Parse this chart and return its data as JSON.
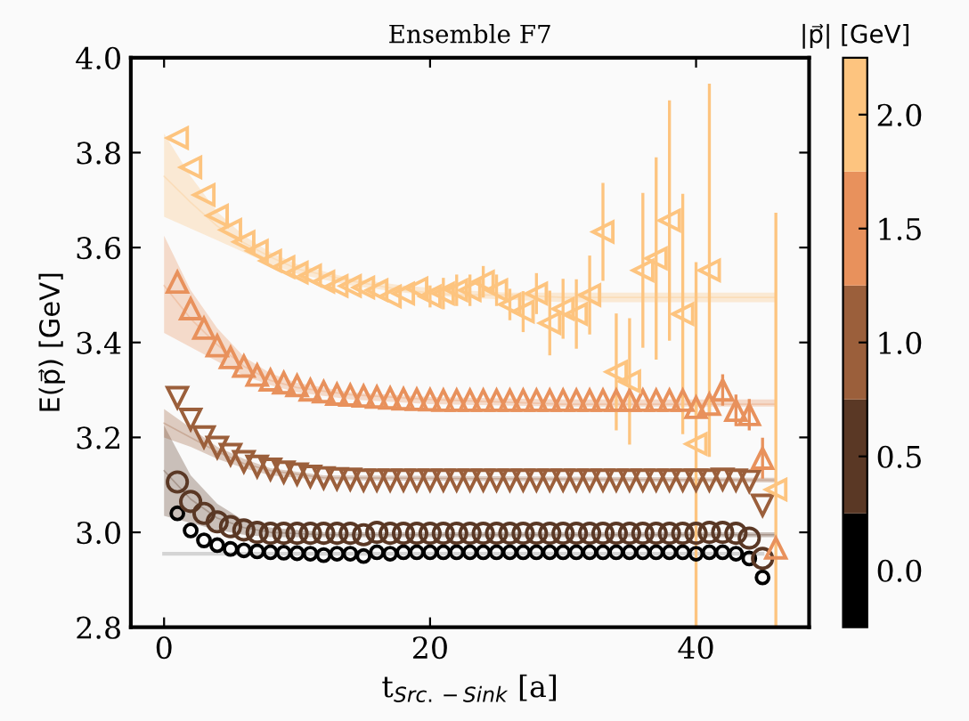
{
  "chart_data": {
    "type": "scatter",
    "title": "Ensemble F7",
    "xlabel": "t$_{Src.−Sink}$ [a]",
    "ylabel": "E(p⃗) [GeV]",
    "clabel": "|p⃗| [GeV]",
    "xlim": [
      -2.5,
      48.5
    ],
    "ylim": [
      2.8,
      4.0
    ],
    "xticks": [
      0,
      20,
      40
    ],
    "yticks": [
      2.8,
      {
        "value": 3.0,
        "label": "3.0"
      },
      3.2,
      3.4,
      3.6,
      3.8,
      {
        "value": 4.0,
        "label": "4.0"
      }
    ],
    "clim": [
      -0.25,
      2.25
    ],
    "cticks": [
      {
        "value": 0,
        "label": "0.0"
      },
      0.5,
      {
        "value": 1,
        "label": "1.0"
      },
      1.5,
      {
        "value": 2,
        "label": "2.0"
      }
    ],
    "grid": false,
    "series": [
      {
        "type": "line",
        "color": "#000000",
        "x": [
          0,
          45
        ],
        "values": [
          2.955,
          2.955
        ]
      },
      {
        "type": "line",
        "color": "#5a3825",
        "x": [
          0,
          2,
          4,
          6,
          8,
          12,
          46
        ],
        "values": [
          3.13,
          3.07,
          3.03,
          3.01,
          3.0,
          2.995,
          2.995
        ],
        "lower": [
          3.035,
          3.02,
          3.005,
          2.995,
          2.99,
          2.99,
          2.99
        ],
        "upper": [
          3.225,
          3.12,
          3.06,
          3.025,
          3.01,
          3.0,
          3.0
        ]
      },
      {
        "type": "line",
        "color": "#9b5f3b",
        "x": [
          0,
          2,
          4,
          6,
          8,
          12,
          46
        ],
        "values": [
          3.23,
          3.2,
          3.17,
          3.145,
          3.13,
          3.115,
          3.11
        ],
        "lower": [
          3.2,
          3.18,
          3.155,
          3.135,
          3.12,
          3.11,
          3.105
        ],
        "upper": [
          3.26,
          3.22,
          3.18,
          3.155,
          3.135,
          3.12,
          3.115
        ]
      },
      {
        "type": "line",
        "color": "#e8915c",
        "x": [
          0,
          2,
          4,
          6,
          8,
          10,
          14,
          20,
          30,
          46
        ],
        "values": [
          3.52,
          3.45,
          3.395,
          3.35,
          3.32,
          3.305,
          3.29,
          3.28,
          3.27,
          3.27
        ],
        "lower": [
          3.42,
          3.39,
          3.36,
          3.33,
          3.31,
          3.295,
          3.28,
          3.27,
          3.265,
          3.265
        ],
        "upper": [
          3.625,
          3.51,
          3.43,
          3.37,
          3.335,
          3.315,
          3.295,
          3.285,
          3.28,
          3.28
        ]
      },
      {
        "type": "line",
        "color": "#fdc47f",
        "x": [
          0,
          2,
          4,
          6,
          8,
          10,
          14,
          18,
          22,
          26,
          30,
          46
        ],
        "values": [
          3.75,
          3.695,
          3.645,
          3.61,
          3.58,
          3.555,
          3.53,
          3.51,
          3.5,
          3.5,
          3.495,
          3.495
        ],
        "lower": [
          3.665,
          3.64,
          3.615,
          3.59,
          3.565,
          3.545,
          3.52,
          3.505,
          3.495,
          3.49,
          3.485,
          3.485
        ],
        "upper": [
          3.84,
          3.75,
          3.675,
          3.625,
          3.59,
          3.565,
          3.535,
          3.52,
          3.51,
          3.505,
          3.505,
          3.505
        ]
      },
      {
        "type": "scatter",
        "marker": "circle_small",
        "color": "#000000",
        "x": [
          1,
          2,
          3,
          4,
          5,
          6,
          7,
          8,
          9,
          10,
          11,
          12,
          13,
          14,
          15,
          16,
          17,
          18,
          19,
          20,
          21,
          22,
          23,
          24,
          25,
          26,
          27,
          28,
          29,
          30,
          31,
          32,
          33,
          34,
          35,
          36,
          37,
          38,
          39,
          40,
          41,
          42,
          43,
          44,
          45
        ],
        "values": [
          3.04,
          3.004,
          2.983,
          2.973,
          2.965,
          2.962,
          2.96,
          2.958,
          2.957,
          2.956,
          2.955,
          2.952,
          2.955,
          2.955,
          2.95,
          2.958,
          2.955,
          2.958,
          2.958,
          2.958,
          2.958,
          2.958,
          2.958,
          2.958,
          2.958,
          2.958,
          2.958,
          2.958,
          2.958,
          2.958,
          2.958,
          2.958,
          2.958,
          2.958,
          2.958,
          2.958,
          2.958,
          2.958,
          2.958,
          2.955,
          2.958,
          2.958,
          2.955,
          2.945,
          2.905
        ]
      },
      {
        "type": "scatter",
        "marker": "circle",
        "color": "#5a3825",
        "x": [
          1,
          2,
          3,
          4,
          5,
          6,
          7,
          8,
          9,
          10,
          11,
          12,
          13,
          14,
          15,
          16,
          17,
          18,
          19,
          20,
          21,
          22,
          23,
          24,
          25,
          26,
          27,
          28,
          29,
          30,
          31,
          32,
          33,
          34,
          35,
          36,
          37,
          38,
          39,
          40,
          41,
          42,
          43,
          44,
          45
        ],
        "values": [
          3.106,
          3.065,
          3.04,
          3.022,
          3.012,
          3.005,
          3.0,
          2.998,
          2.998,
          2.998,
          2.998,
          2.998,
          2.998,
          2.998,
          2.995,
          3.0,
          2.998,
          2.998,
          2.998,
          2.998,
          2.998,
          2.998,
          2.998,
          2.998,
          2.998,
          2.998,
          2.998,
          2.998,
          2.998,
          2.998,
          2.998,
          2.998,
          2.998,
          2.998,
          2.998,
          2.998,
          2.998,
          2.998,
          2.998,
          2.998,
          3.0,
          3.0,
          2.998,
          2.988,
          2.945
        ]
      },
      {
        "type": "scatter",
        "marker": "triangle_down",
        "color": "#9b5f3b",
        "x": [
          1,
          2,
          3,
          4,
          5,
          6,
          7,
          8,
          9,
          10,
          11,
          12,
          13,
          14,
          15,
          16,
          17,
          18,
          19,
          20,
          21,
          22,
          23,
          24,
          25,
          26,
          27,
          28,
          29,
          30,
          31,
          32,
          33,
          34,
          35,
          36,
          37,
          38,
          39,
          40,
          41,
          42,
          43,
          44,
          45
        ],
        "values": [
          3.284,
          3.238,
          3.201,
          3.179,
          3.164,
          3.149,
          3.139,
          3.133,
          3.127,
          3.123,
          3.118,
          3.115,
          3.113,
          3.112,
          3.11,
          3.11,
          3.11,
          3.11,
          3.11,
          3.11,
          3.11,
          3.11,
          3.11,
          3.11,
          3.11,
          3.11,
          3.11,
          3.11,
          3.11,
          3.11,
          3.11,
          3.11,
          3.11,
          3.11,
          3.11,
          3.11,
          3.11,
          3.11,
          3.11,
          3.11,
          3.11,
          3.112,
          3.11,
          3.108,
          3.057
        ]
      },
      {
        "type": "scatter",
        "marker": "triangle_up",
        "color": "#e8915c",
        "x": [
          1,
          2,
          3,
          4,
          5,
          6,
          7,
          8,
          9,
          10,
          11,
          12,
          13,
          14,
          15,
          16,
          17,
          18,
          19,
          20,
          21,
          22,
          23,
          24,
          25,
          26,
          27,
          28,
          29,
          30,
          31,
          32,
          33,
          34,
          35,
          36,
          37,
          38,
          39,
          40,
          41,
          42,
          43,
          44,
          45,
          46
        ],
        "values": [
          3.527,
          3.471,
          3.43,
          3.393,
          3.368,
          3.35,
          3.331,
          3.321,
          3.315,
          3.309,
          3.3,
          3.296,
          3.291,
          3.289,
          3.287,
          3.285,
          3.283,
          3.281,
          3.28,
          3.279,
          3.278,
          3.278,
          3.278,
          3.278,
          3.278,
          3.278,
          3.278,
          3.278,
          3.278,
          3.278,
          3.278,
          3.278,
          3.278,
          3.278,
          3.278,
          3.278,
          3.278,
          3.278,
          3.278,
          3.263,
          3.27,
          3.3,
          3.257,
          3.248,
          3.156,
          2.967
        ],
        "errors": [
          null,
          null,
          null,
          null,
          null,
          null,
          null,
          null,
          null,
          null,
          null,
          null,
          null,
          null,
          null,
          null,
          null,
          null,
          null,
          null,
          null,
          null,
          null,
          null,
          null,
          null,
          null,
          null,
          null,
          null,
          null,
          null,
          null,
          null,
          null,
          null,
          null,
          null,
          null,
          0.02,
          0.02,
          0.03,
          0.03,
          0.03,
          0.04,
          null
        ]
      },
      {
        "type": "scatter",
        "marker": "triangle_left",
        "color": "#fdc47f",
        "x": [
          1,
          2,
          3,
          4,
          5,
          6,
          7,
          8,
          9,
          10,
          11,
          12,
          13,
          14,
          15,
          16,
          17,
          18,
          19,
          20,
          21,
          22,
          23,
          24,
          25,
          26,
          27,
          28,
          29,
          30,
          31,
          32,
          33,
          34,
          35,
          36,
          37,
          38,
          39,
          40,
          41,
          42,
          43,
          44,
          45,
          46
        ],
        "values": [
          3.831,
          3.769,
          3.711,
          3.667,
          3.637,
          3.612,
          3.593,
          3.572,
          3.559,
          3.547,
          3.541,
          3.528,
          3.519,
          3.519,
          3.516,
          3.51,
          3.497,
          3.503,
          3.514,
          3.497,
          3.503,
          3.51,
          3.51,
          3.528,
          3.51,
          3.48,
          3.465,
          3.503,
          3.441,
          3.471,
          3.46,
          3.5,
          3.633,
          3.338,
          3.318,
          3.552,
          3.577,
          3.657,
          3.46,
          3.186,
          3.552,
          null,
          null,
          null,
          null,
          3.09
        ],
        "errors": [
          null,
          null,
          null,
          null,
          null,
          null,
          null,
          null,
          null,
          null,
          null,
          null,
          null,
          null,
          null,
          null,
          null,
          null,
          null,
          0.02,
          0.03,
          0.03,
          0.03,
          0.03,
          0.03,
          0.03,
          0.04,
          0.04,
          0.065,
          0.06,
          0.07,
          0.08,
          0.1,
          0.12,
          0.13,
          0.16,
          0.21,
          0.25,
          0.25,
          0.38,
          0.39,
          null,
          null,
          null,
          null,
          [
            2.8,
            3.67
          ]
        ]
      }
    ]
  }
}
